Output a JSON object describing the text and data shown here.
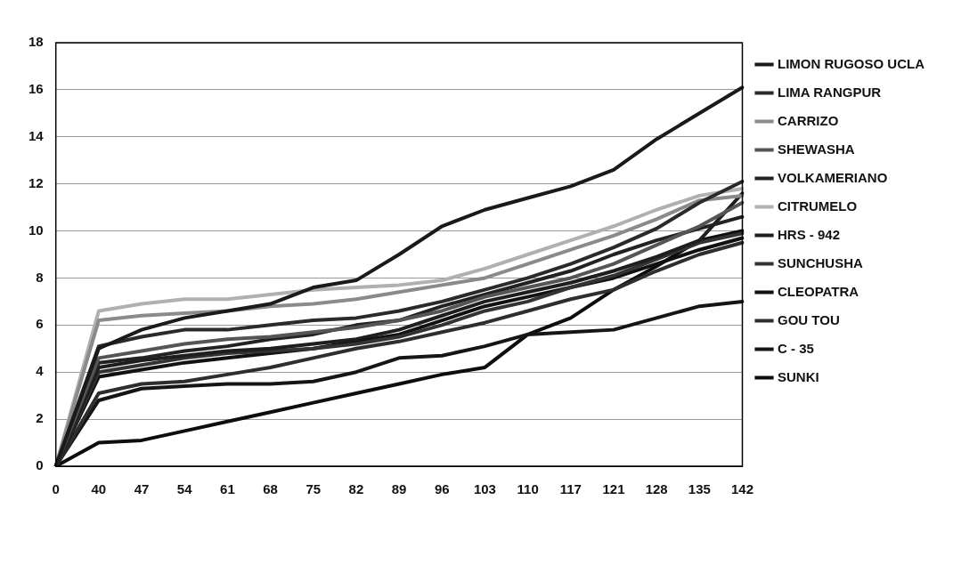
{
  "chart_data": {
    "type": "line",
    "categories": [
      "0",
      "40",
      "47",
      "54",
      "61",
      "68",
      "75",
      "82",
      "89",
      "96",
      "103",
      "110",
      "117",
      "121",
      "128",
      "135",
      "142"
    ],
    "series": [
      {
        "name": "LIMON RUGOSO UCLA",
        "color": "#1a1a1a",
        "values": [
          0,
          5.0,
          5.8,
          6.3,
          6.6,
          6.9,
          7.6,
          7.9,
          9.0,
          10.2,
          10.9,
          11.4,
          11.9,
          12.6,
          13.9,
          15.0,
          16.1
        ]
      },
      {
        "name": "LIMA RANGPUR",
        "color": "#2a2a2a",
        "values": [
          0,
          5.1,
          5.5,
          5.8,
          5.8,
          6.0,
          6.2,
          6.3,
          6.6,
          7.0,
          7.5,
          8.0,
          8.6,
          9.3,
          10.1,
          11.2,
          12.1
        ]
      },
      {
        "name": "CARRIZO",
        "color": "#8a8a8a",
        "values": [
          0,
          6.2,
          6.4,
          6.5,
          6.6,
          6.8,
          6.9,
          7.1,
          7.4,
          7.7,
          8.0,
          8.6,
          9.2,
          9.8,
          10.5,
          11.3,
          11.5
        ]
      },
      {
        "name": "SHEWASHA",
        "color": "#555555",
        "values": [
          0,
          4.6,
          4.9,
          5.2,
          5.4,
          5.5,
          5.7,
          5.9,
          6.2,
          6.6,
          7.2,
          7.6,
          8.0,
          8.6,
          9.4,
          10.2,
          11.2
        ]
      },
      {
        "name": "VOLKAMERIANO",
        "color": "#222222",
        "values": [
          0,
          4.4,
          4.6,
          4.9,
          5.1,
          5.4,
          5.6,
          6.0,
          6.2,
          6.8,
          7.3,
          7.8,
          8.3,
          9.0,
          9.6,
          10.1,
          10.6
        ]
      },
      {
        "name": "CITRUMELO",
        "color": "#b0b0b0",
        "values": [
          0,
          6.6,
          6.9,
          7.1,
          7.1,
          7.3,
          7.5,
          7.6,
          7.7,
          7.9,
          8.4,
          9.0,
          9.6,
          10.2,
          10.9,
          11.5,
          11.8
        ]
      },
      {
        "name": "HRS - 942",
        "color": "#1e1e1e",
        "values": [
          0,
          4.2,
          4.5,
          4.7,
          4.9,
          5.0,
          5.2,
          5.4,
          5.8,
          6.4,
          7.0,
          7.4,
          7.8,
          8.3,
          8.9,
          9.6,
          11.6
        ]
      },
      {
        "name": "SUNCHUSHA",
        "color": "#333333",
        "values": [
          0,
          4.0,
          4.3,
          4.6,
          4.8,
          4.9,
          5.0,
          5.2,
          5.5,
          6.0,
          6.6,
          7.0,
          7.6,
          8.1,
          8.8,
          9.5,
          9.9
        ]
      },
      {
        "name": "CLEOPATRA",
        "color": "#111111",
        "values": [
          0,
          3.8,
          4.1,
          4.4,
          4.6,
          4.8,
          5.0,
          5.3,
          5.6,
          6.2,
          6.8,
          7.2,
          7.6,
          8.0,
          8.6,
          9.2,
          9.7
        ]
      },
      {
        "name": "GOU TOU",
        "color": "#2e2e2e",
        "values": [
          0,
          3.1,
          3.5,
          3.6,
          3.9,
          4.2,
          4.6,
          5.0,
          5.3,
          5.7,
          6.1,
          6.6,
          7.1,
          7.5,
          8.3,
          9.0,
          9.5
        ]
      },
      {
        "name": "C - 35",
        "color": "#151515",
        "values": [
          0,
          2.8,
          3.3,
          3.4,
          3.5,
          3.5,
          3.6,
          4.0,
          4.6,
          4.7,
          5.1,
          5.6,
          5.7,
          5.8,
          6.3,
          6.8,
          7.0
        ]
      },
      {
        "name": "SUNKI",
        "color": "#0d0d0d",
        "values": [
          0,
          1.0,
          1.1,
          1.5,
          1.9,
          2.3,
          2.7,
          3.1,
          3.5,
          3.9,
          4.2,
          5.6,
          6.3,
          7.5,
          8.5,
          9.6,
          10.0
        ]
      }
    ],
    "ylim": [
      0,
      18
    ],
    "yticks": [
      0,
      2,
      4,
      6,
      8,
      10,
      12,
      14,
      16,
      18
    ],
    "grid": "y",
    "legend": "right",
    "marker": "none",
    "line_style": "solid"
  }
}
